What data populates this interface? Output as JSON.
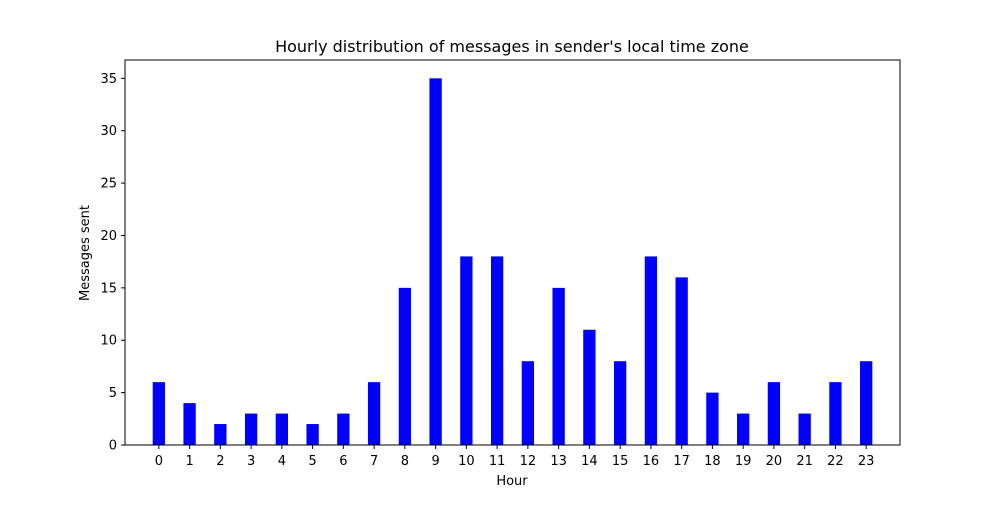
{
  "chart_data": {
    "type": "bar",
    "title": "Hourly distribution of messages in sender's local time zone",
    "xlabel": "Hour",
    "ylabel": "Messages sent",
    "categories": [
      "0",
      "1",
      "2",
      "3",
      "4",
      "5",
      "6",
      "7",
      "8",
      "9",
      "10",
      "11",
      "12",
      "13",
      "14",
      "15",
      "16",
      "17",
      "18",
      "19",
      "20",
      "21",
      "22",
      "23"
    ],
    "values": [
      6,
      4,
      2,
      3,
      3,
      2,
      3,
      6,
      15,
      35,
      18,
      18,
      8,
      15,
      11,
      8,
      18,
      16,
      5,
      3,
      6,
      3,
      6,
      8
    ],
    "ylim": [
      0,
      36.75
    ],
    "yticks": [
      0,
      5,
      10,
      15,
      20,
      25,
      30,
      35
    ],
    "bar_color": "#0000ff",
    "grid": false,
    "legend": "none"
  }
}
